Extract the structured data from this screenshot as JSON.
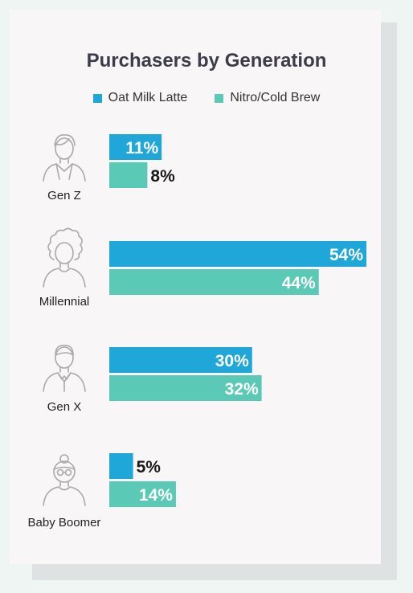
{
  "chart_data": {
    "type": "bar",
    "orientation": "horizontal",
    "title": "Purchasers by Generation",
    "categories": [
      "Gen Z",
      "Millennial",
      "Gen X",
      "Baby Boomer"
    ],
    "series": [
      {
        "name": "Oat Milk Latte",
        "color": "#1fa7d9",
        "values": [
          11,
          54,
          30,
          5
        ],
        "labels": [
          "11%",
          "54%",
          "30%",
          "5%"
        ]
      },
      {
        "name": "Nitro/Cold Brew",
        "color": "#5ac9b5",
        "values": [
          8,
          44,
          32,
          14
        ],
        "labels": [
          "8%",
          "44%",
          "32%",
          "14%"
        ]
      }
    ],
    "xlim": [
      0,
      54
    ],
    "icons": [
      "young-person-icon",
      "curly-hair-person-icon",
      "collared-man-icon",
      "elderly-woman-glasses-icon"
    ],
    "legend_position": "top",
    "grid": false
  }
}
